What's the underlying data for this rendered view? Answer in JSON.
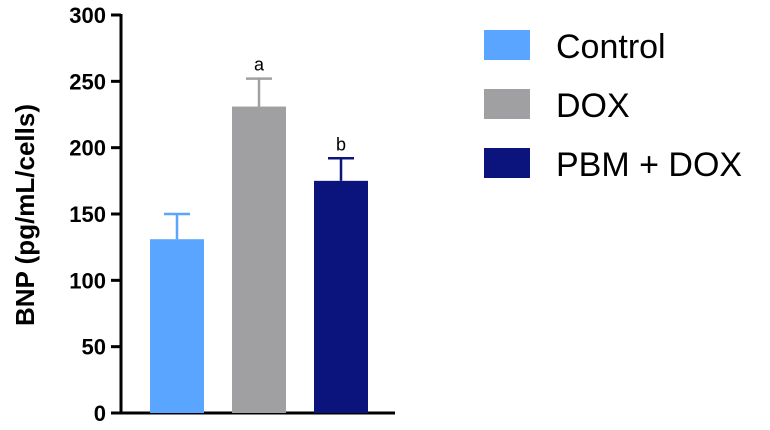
{
  "chart_data": {
    "type": "bar",
    "categories": [
      "Control",
      "DOX",
      "PBM + DOX"
    ],
    "values": [
      131,
      231,
      175
    ],
    "errors": [
      19,
      21,
      17
    ],
    "significance": [
      "",
      "a",
      "b"
    ],
    "colors": [
      "#59a5ff",
      "#a0a0a2",
      "#0b137d"
    ],
    "ylabel": "BNP (pg/mL/cells)",
    "ylim": [
      0,
      300
    ],
    "yticks": [
      0,
      50,
      100,
      150,
      200,
      250,
      300
    ],
    "grid": false,
    "legend": {
      "placement": "right",
      "entries": [
        "Control",
        "DOX",
        "PBM + DOX"
      ]
    }
  }
}
